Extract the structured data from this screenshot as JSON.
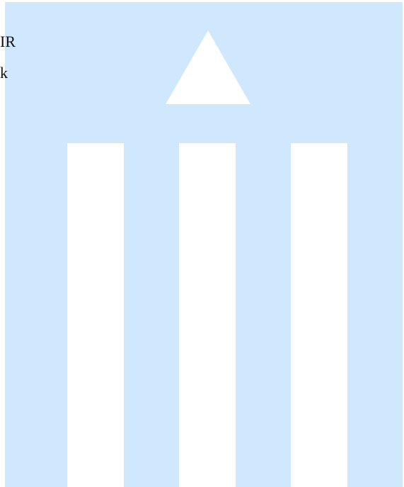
{
  "fragments": {
    "line1": "IR",
    "line2": "k"
  },
  "colors": {
    "background": "#cfe8fd",
    "shapes": "#ffffff"
  },
  "icons": [
    "triangle-shape",
    "bar-shape"
  ]
}
